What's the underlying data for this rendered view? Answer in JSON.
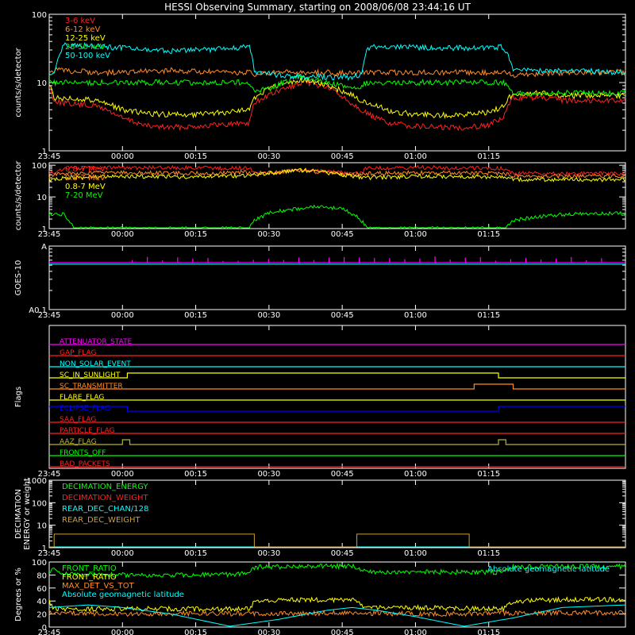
{
  "title": "HESSI Observing Summary, starting on 2008/06/08 23:44:16 UT",
  "colors": {
    "background": "#000000",
    "axes": "#ffffff",
    "red": "#ff2020",
    "orange": "#ff8c28",
    "yellow": "#ffff00",
    "green": "#00ff00",
    "cyan": "#00ffff",
    "magenta": "#ff00ff",
    "blue": "#0000ff",
    "olive": "#b4b432",
    "goldenrod": "#c8a03c"
  },
  "time_axis": {
    "range_minutes": [
      -15,
      103
    ],
    "ticks": [
      {
        "t": -15,
        "label": "23:45"
      },
      {
        "t": 0,
        "label": "00:00"
      },
      {
        "t": 15,
        "label": "00:15"
      },
      {
        "t": 30,
        "label": "00:30"
      },
      {
        "t": 45,
        "label": "00:45"
      },
      {
        "t": 60,
        "label": "01:00"
      },
      {
        "t": 75,
        "label": "01:15"
      }
    ]
  },
  "chart_data": [
    {
      "id": "lo",
      "type": "line",
      "ylabel": "counts/s/detector",
      "yscale": "log",
      "ylim": [
        1,
        100
      ],
      "yticks": [
        {
          "v": 1,
          "label": "1"
        },
        {
          "v": 10,
          "label": "10"
        },
        {
          "v": 100,
          "label": "100"
        }
      ],
      "legend_position": "top-left",
      "series": [
        {
          "name": "3-6 keV",
          "color": "#ff2020",
          "x": [
            -15,
            -14,
            -12,
            -5,
            0,
            5,
            10,
            15,
            20,
            26,
            27,
            30,
            34,
            38,
            42,
            46,
            50,
            52,
            55,
            60,
            65,
            70,
            75,
            78,
            80,
            85,
            90,
            98,
            103
          ],
          "y": [
            8.5,
            5.5,
            5,
            4.5,
            3,
            2.3,
            2.2,
            2.3,
            2.4,
            2.6,
            5,
            6.5,
            8.5,
            10,
            8.5,
            5.5,
            3.5,
            3,
            2.5,
            2.3,
            2.2,
            2.2,
            2.4,
            3,
            6,
            6,
            5.5,
            5.5,
            5.5
          ]
        },
        {
          "name": "6-12 keV",
          "color": "#ff8c28",
          "x": [
            -15,
            -14,
            -12,
            -5,
            0,
            10,
            20,
            26,
            27,
            32,
            38,
            44,
            48,
            52,
            60,
            70,
            78,
            80,
            90,
            103
          ],
          "y": [
            14,
            15,
            15,
            14,
            14,
            15,
            14,
            14,
            13,
            14,
            14,
            14,
            14,
            14,
            14,
            14,
            14,
            13,
            14,
            14
          ]
        },
        {
          "name": "12-25 keV",
          "color": "#ffff00",
          "x": [
            -15,
            -14,
            -12,
            -5,
            0,
            5,
            10,
            15,
            20,
            26,
            27,
            30,
            34,
            38,
            42,
            46,
            50,
            52,
            55,
            60,
            65,
            70,
            75,
            78,
            80,
            85,
            90,
            98,
            103
          ],
          "y": [
            9,
            6,
            6,
            5.5,
            4,
            3.5,
            3.4,
            3.4,
            3.6,
            4,
            6,
            8,
            10,
            11,
            9,
            7,
            5,
            4.5,
            3.8,
            3.4,
            3.3,
            3.4,
            3.6,
            4.5,
            7,
            7,
            6.5,
            6.5,
            6.5
          ]
        },
        {
          "name": "25-50 keV",
          "color": "#00ff00",
          "x": [
            -15,
            -14,
            -12,
            0,
            10,
            20,
            26,
            27,
            30,
            36,
            42,
            48,
            50,
            60,
            70,
            78,
            80,
            90,
            103
          ],
          "y": [
            10,
            10,
            10,
            10,
            10,
            10,
            10,
            7.5,
            8,
            12,
            10,
            8,
            10,
            10,
            10,
            10,
            7,
            7,
            7
          ]
        },
        {
          "name": "50-100 keV",
          "color": "#00ffff",
          "x": [
            -15,
            -14,
            -12,
            -5,
            0,
            10,
            20,
            26,
            27,
            37,
            47,
            49,
            50,
            52,
            60,
            70,
            78,
            80,
            90,
            103
          ],
          "y": [
            14,
            14,
            35,
            34,
            32,
            29,
            31,
            34,
            14,
            12,
            12,
            13,
            32,
            34,
            33,
            32,
            33,
            15,
            15,
            14
          ]
        }
      ]
    },
    {
      "id": "hi",
      "type": "line",
      "ylabel": "counts/s/detector",
      "yscale": "log",
      "ylim": [
        1,
        120
      ],
      "yticks": [
        {
          "v": 1,
          "label": "1"
        },
        {
          "v": 10,
          "label": "10"
        },
        {
          "v": 100,
          "label": "100"
        }
      ],
      "legend_position": "top-left",
      "series": [
        {
          "name": "0.8-7 MeV",
          "color": "#ff2020",
          "x": [
            -15,
            -14,
            -12,
            0,
            26,
            27,
            37,
            47,
            49,
            50,
            60,
            78,
            80,
            103
          ],
          "y": [
            60,
            60,
            80,
            85,
            80,
            55,
            70,
            55,
            58,
            80,
            85,
            80,
            55,
            55
          ]
        },
        {
          "name": "0.8-7 MeV",
          "color": "#ff8c28",
          "x": [
            -15,
            -12,
            0,
            15,
            26,
            27,
            37,
            47,
            50,
            60,
            78,
            80,
            103
          ],
          "y": [
            45,
            55,
            58,
            55,
            60,
            55,
            68,
            50,
            55,
            58,
            55,
            45,
            45
          ]
        },
        {
          "name": "0.8-7 MeV",
          "color": "#ffff00",
          "x": [
            -15,
            -12,
            0,
            15,
            26,
            27,
            37,
            47,
            50,
            60,
            78,
            80,
            103
          ],
          "y": [
            35,
            40,
            45,
            42,
            48,
            50,
            70,
            45,
            40,
            45,
            42,
            35,
            35
          ]
        },
        {
          "name": "7-20 MeV",
          "color": "#00ff00",
          "x": [
            -15,
            -12,
            -10,
            0,
            20,
            26,
            27,
            30,
            32,
            35,
            40,
            45,
            48,
            50,
            60,
            70,
            78,
            80,
            90,
            103
          ],
          "y": [
            2.8,
            2.8,
            1,
            1,
            1,
            1,
            1.8,
            3,
            3.5,
            4,
            5,
            4,
            2.5,
            1,
            1,
            1,
            1,
            1.8,
            2.8,
            3
          ]
        }
      ]
    },
    {
      "id": "goes",
      "type": "line",
      "ylabel": "GOES-10",
      "yscale": "log",
      "ylim": [
        1e-09,
        1e-08
      ],
      "yticks": [
        {
          "v": 1e-08,
          "label": "A"
        },
        {
          "v": 1e-09,
          "label": "A0.1"
        }
      ],
      "series": [
        {
          "color": "#ff00ff",
          "x": [
            -15,
            103
          ],
          "y": [
            5.5e-09,
            5.5e-09
          ]
        },
        {
          "color": "#00ffff",
          "x": [
            -15,
            103
          ],
          "y": [
            5.2e-09,
            5.2e-09
          ]
        }
      ]
    },
    {
      "id": "flags",
      "type": "line",
      "ylabel": "Flags",
      "rows": [
        {
          "name": "ATTENUATOR_STATE",
          "color": "#ff00ff",
          "x": [
            -15,
            103
          ],
          "y": [
            0,
            0
          ]
        },
        {
          "name": "GAP_FLAG",
          "color": "#ff2020",
          "x": [
            -15,
            103
          ],
          "y": [
            0,
            0
          ]
        },
        {
          "name": "NON_SOLAR_EVENT",
          "color": "#00ffff",
          "x": [
            -15,
            103
          ],
          "y": [
            0,
            0
          ]
        },
        {
          "name": "SC_IN_SUNLIGHT",
          "color": "#ffff00",
          "x": [
            -15,
            1,
            1,
            77,
            77,
            103
          ],
          "y": [
            0,
            0,
            1,
            1,
            0,
            0
          ]
        },
        {
          "name": "SC_TRANSMITTER",
          "color": "#ff8c28",
          "x": [
            -15,
            72,
            72,
            80,
            80,
            103
          ],
          "y": [
            0,
            0,
            1,
            1,
            0,
            0
          ]
        },
        {
          "name": "FLARE_FLAG",
          "color": "#ffff00",
          "x": [
            -15,
            103
          ],
          "y": [
            0,
            0
          ]
        },
        {
          "name": "ECLIPSE_FLAG",
          "color": "#0000ff",
          "x": [
            -15,
            1,
            1,
            77,
            77,
            103
          ],
          "y": [
            1,
            1,
            0,
            0,
            1,
            1
          ]
        },
        {
          "name": "SAA_FLAG",
          "color": "#ff2020",
          "x": [
            -15,
            103
          ],
          "y": [
            0,
            0
          ]
        },
        {
          "name": "PARTICLE_FLAG",
          "color": "#ff2020",
          "x": [
            -15,
            103
          ],
          "y": [
            0,
            0
          ]
        },
        {
          "name": "AAZ_FLAG",
          "color": "#b4b432",
          "x": [
            -15,
            0,
            0,
            1.5,
            1.5,
            77,
            77,
            78.5,
            78.5,
            103
          ],
          "y": [
            0,
            0,
            1,
            1,
            0,
            0,
            1,
            1,
            0,
            0
          ]
        },
        {
          "name": "FRONTS_OFF",
          "color": "#00ff00",
          "x": [
            -15,
            103
          ],
          "y": [
            0,
            0
          ]
        },
        {
          "name": "BAD_PACKETS",
          "color": "#ff2020",
          "x": [
            -15,
            103
          ],
          "y": [
            0,
            0
          ]
        }
      ]
    },
    {
      "id": "decim",
      "type": "line",
      "ylabel": "DECIMATION",
      "ylabel2": "ENERGY or weight",
      "yscale": "log",
      "ylim": [
        1,
        1000
      ],
      "yticks": [
        {
          "v": 1,
          "label": "1"
        },
        {
          "v": 10,
          "label": "10"
        },
        {
          "v": 100,
          "label": "100"
        },
        {
          "v": 1000,
          "label": "1000"
        }
      ],
      "series": [
        {
          "name": "DECIMATION_ENERGY",
          "color": "#00ff00",
          "x": [
            -15,
            103
          ],
          "y": [
            1,
            1
          ]
        },
        {
          "name": "DECIMATION_WEIGHT",
          "color": "#ff2020",
          "x": [
            -15,
            103
          ],
          "y": [
            1,
            1
          ]
        },
        {
          "name": "REAR_DEC_CHAN/128",
          "color": "#00ffff",
          "x": [
            -15,
            103
          ],
          "y": [
            1,
            1
          ]
        },
        {
          "name": "REAR_DEC_WEIGHT",
          "color": "#c8a03c",
          "x": [
            -15,
            -14,
            -14,
            27,
            27,
            48,
            48,
            71,
            71,
            103
          ],
          "y": [
            1,
            1,
            4,
            4,
            1,
            1,
            4,
            4,
            1,
            1
          ]
        }
      ]
    },
    {
      "id": "ratio",
      "type": "line",
      "ylabel": "Degrees or %",
      "ylim": [
        0,
        100
      ],
      "yticks": [
        {
          "v": 0,
          "label": "0"
        },
        {
          "v": 20,
          "label": "20"
        },
        {
          "v": 40,
          "label": "40"
        },
        {
          "v": 60,
          "label": "60"
        },
        {
          "v": 80,
          "label": "80"
        },
        {
          "v": 100,
          "label": "100"
        }
      ],
      "annotation": "Absolute geomagnetic latitude",
      "series": [
        {
          "name": "FRONT_RATIO",
          "color": "#00ff00",
          "x": [
            -15,
            -14,
            -12,
            0,
            15,
            26,
            27,
            37,
            47,
            50,
            60,
            78,
            80,
            90,
            103
          ],
          "y": [
            85,
            88,
            82,
            80,
            80,
            82,
            92,
            93,
            94,
            85,
            85,
            84,
            92,
            93,
            93
          ]
        },
        {
          "name": "FRONT_RATIO",
          "color": "#ffff00",
          "x": [
            -15,
            -14,
            -12,
            0,
            15,
            26,
            27,
            37,
            47,
            50,
            60,
            78,
            80,
            90,
            103
          ],
          "y": [
            40,
            28,
            28,
            28,
            28,
            28,
            40,
            42,
            42,
            30,
            30,
            28,
            40,
            42,
            42
          ]
        },
        {
          "name": "MAX_DET_VS_TOT",
          "color": "#ff8c28",
          "x": [
            -15,
            0,
            15,
            30,
            45,
            60,
            75,
            90,
            103
          ],
          "y": [
            22,
            20,
            21,
            20,
            22,
            20,
            21,
            22,
            22
          ]
        },
        {
          "name": "Absolute geomagnetic latitude",
          "color": "#00ffff",
          "x": [
            -15,
            -7,
            0,
            10,
            22,
            32,
            42,
            47,
            52,
            60,
            70,
            80,
            90,
            103
          ],
          "y": [
            30,
            34,
            30,
            20,
            0,
            12,
            26,
            30,
            26,
            16,
            0,
            14,
            30,
            34
          ]
        }
      ]
    }
  ]
}
